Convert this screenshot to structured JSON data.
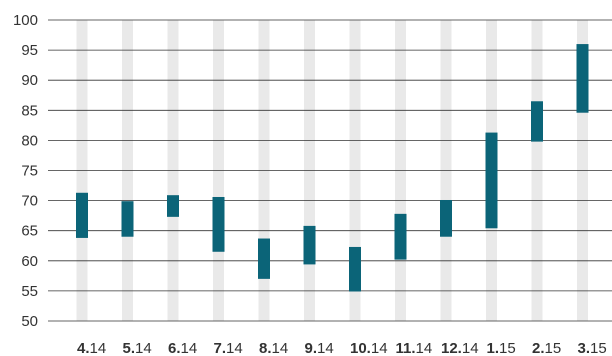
{
  "chart_data": {
    "type": "floating-bar",
    "title": "",
    "xlabel": "",
    "ylabel": "",
    "ylim": [
      50,
      100
    ],
    "yticks": [
      50,
      55,
      60,
      65,
      70,
      75,
      80,
      85,
      90,
      95,
      100
    ],
    "grid": "horizontal",
    "categories": [
      {
        "bold": "4.",
        "rest": "14"
      },
      {
        "bold": "5.",
        "rest": "14"
      },
      {
        "bold": "6.",
        "rest": "14"
      },
      {
        "bold": "7.",
        "rest": "14"
      },
      {
        "bold": "8.",
        "rest": "14"
      },
      {
        "bold": "9.",
        "rest": "14"
      },
      {
        "bold": "10.",
        "rest": "14"
      },
      {
        "bold": "11.",
        "rest": "14"
      },
      {
        "bold": "12.",
        "rest": "14"
      },
      {
        "bold": "1.",
        "rest": "15"
      },
      {
        "bold": "2.",
        "rest": "15"
      },
      {
        "bold": "3.",
        "rest": "15"
      }
    ],
    "ranges": [
      {
        "low": 63.8,
        "high": 71.3
      },
      {
        "low": 64.0,
        "high": 69.9
      },
      {
        "low": 67.3,
        "high": 70.9
      },
      {
        "low": 61.5,
        "high": 70.6
      },
      {
        "low": 57.0,
        "high": 63.7
      },
      {
        "low": 59.4,
        "high": 65.8
      },
      {
        "low": 54.9,
        "high": 62.3
      },
      {
        "low": 60.2,
        "high": 67.8
      },
      {
        "low": 64.0,
        "high": 70.1
      },
      {
        "low": 65.4,
        "high": 81.3
      },
      {
        "low": 79.8,
        "high": 86.5
      },
      {
        "low": 84.6,
        "high": 96.0
      }
    ],
    "colors": {
      "bar": "#0b6478",
      "column_band": "#e9e9e9",
      "gridline": "#333333"
    }
  }
}
